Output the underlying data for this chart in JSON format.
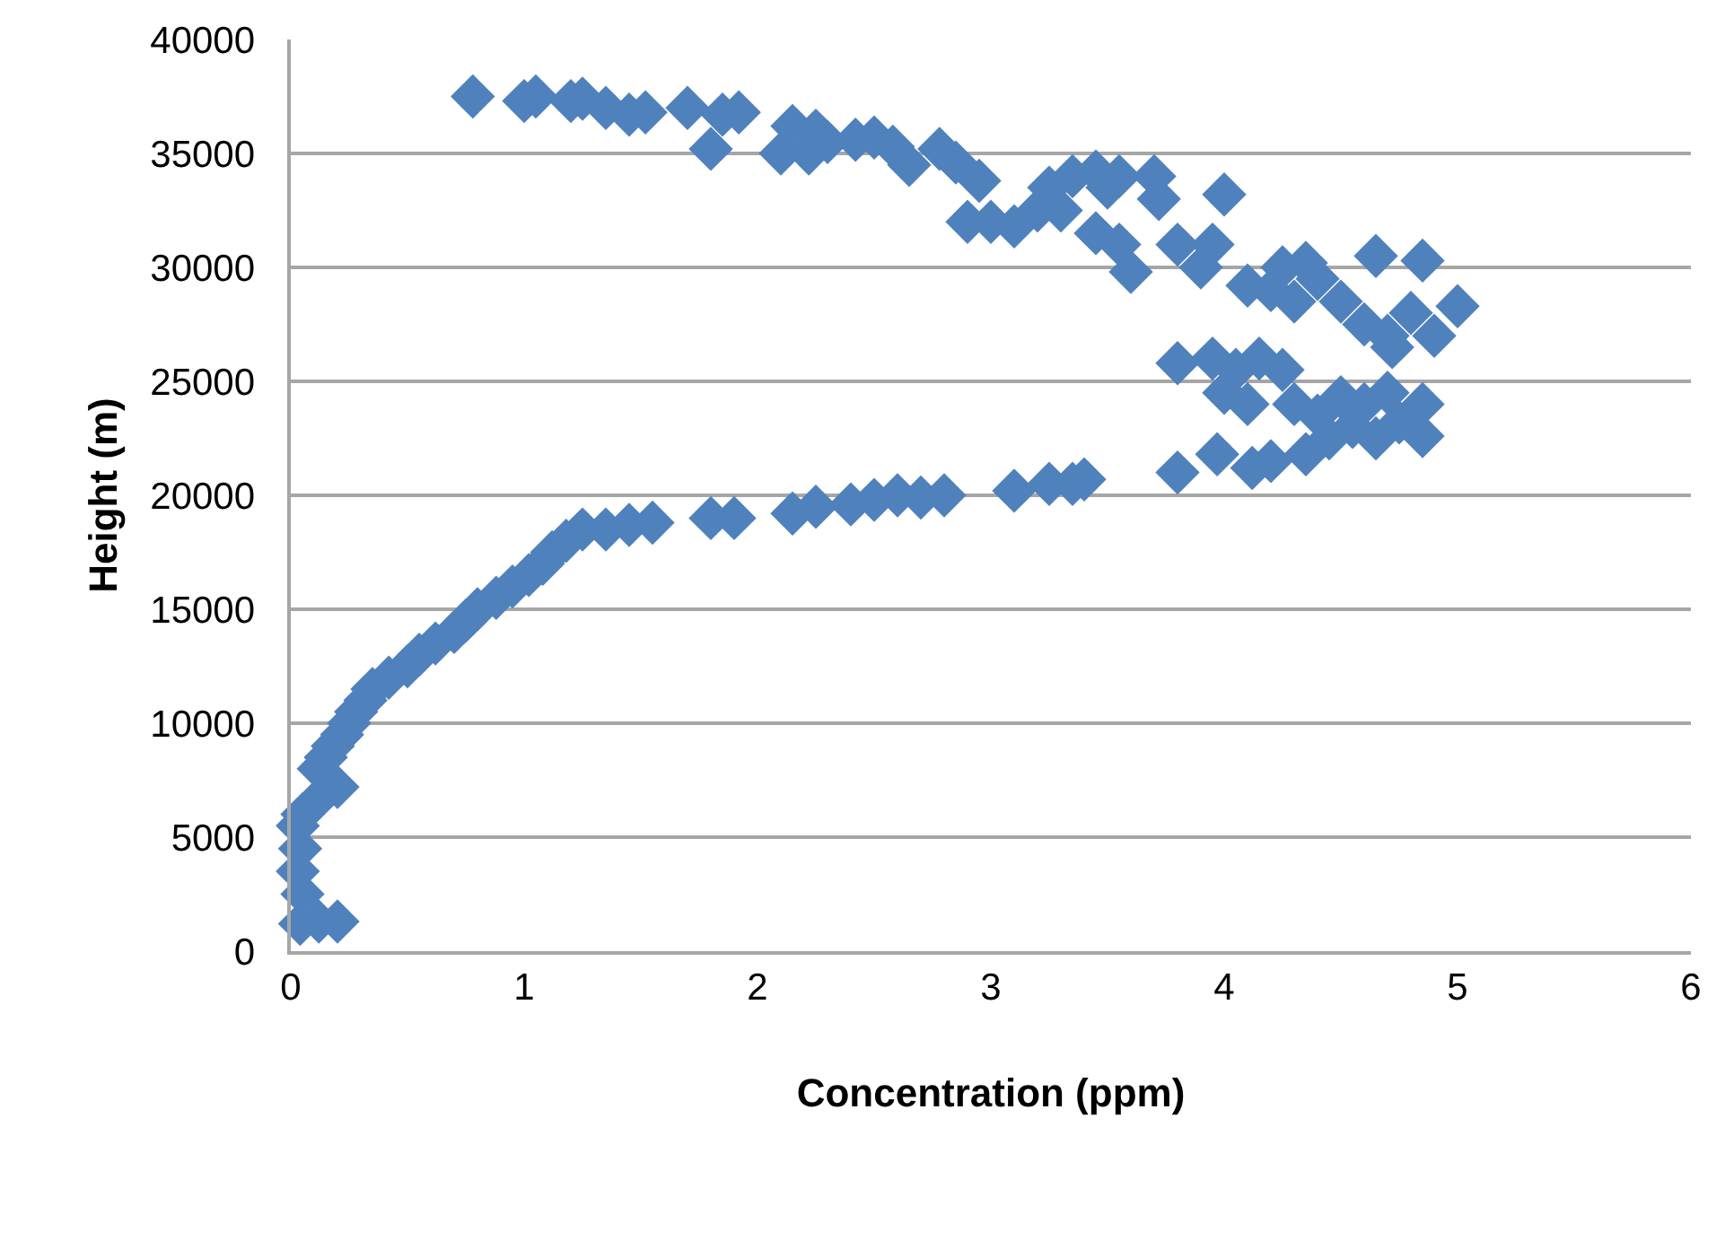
{
  "chart_data": {
    "type": "scatter",
    "xlabel": "Concentration (ppm)",
    "ylabel": "Height (m)",
    "xlim": [
      0,
      6
    ],
    "xticks": [
      0,
      1,
      2,
      3,
      4,
      5,
      6
    ],
    "ylim": [
      0,
      40000
    ],
    "yticks": [
      0,
      5000,
      10000,
      15000,
      20000,
      25000,
      30000,
      35000,
      40000
    ],
    "grid": "y",
    "marker": "diamond",
    "series": [
      {
        "color": "#4f81bd",
        "x": [
          0.04,
          0.12,
          0.2,
          0.05,
          0.03,
          0.04,
          0.03,
          0.05,
          0.1,
          0.2,
          0.12,
          0.15,
          0.18,
          0.22,
          0.25,
          0.28,
          0.32,
          0.35,
          0.42,
          0.5,
          0.55,
          0.62,
          0.7,
          0.75,
          0.8,
          0.88,
          0.95,
          1.02,
          1.08,
          1.12,
          1.18,
          1.25,
          1.35,
          1.45,
          1.55,
          1.8,
          1.9,
          2.15,
          2.25,
          2.4,
          2.5,
          2.6,
          2.7,
          2.8,
          3.1,
          3.25,
          3.35,
          3.4,
          3.8,
          3.97,
          4.12,
          4.2,
          4.35,
          4.45,
          4.65,
          4.85,
          3.8,
          3.95,
          4.05,
          4.15,
          4.25,
          4.0,
          4.1,
          4.3,
          4.4,
          4.5,
          4.6,
          4.7,
          4.85,
          4.55,
          4.75,
          0.78,
          1.0,
          1.05,
          1.2,
          1.25,
          1.35,
          1.45,
          1.52,
          1.7,
          1.85,
          1.8,
          1.92,
          2.1,
          2.15,
          2.22,
          2.25,
          2.3,
          2.42,
          2.5,
          2.58,
          2.65,
          2.78,
          2.85,
          2.95,
          2.9,
          3.0,
          3.1,
          3.2,
          3.25,
          3.35,
          3.3,
          3.45,
          3.5,
          3.55,
          3.45,
          3.55,
          3.7,
          3.72,
          3.6,
          3.8,
          3.9,
          4.0,
          3.95,
          4.1,
          4.2,
          4.25,
          4.35,
          4.4,
          4.3,
          4.5,
          4.65,
          4.6,
          4.7,
          4.8,
          4.85,
          4.9,
          5.0,
          4.72
        ],
        "values": [
          1200,
          1300,
          1300,
          2500,
          3500,
          4500,
          5500,
          6000,
          6500,
          7200,
          8000,
          8500,
          9000,
          9500,
          10000,
          10500,
          11000,
          11500,
          12000,
          12500,
          13000,
          13500,
          14000,
          14500,
          15000,
          15500,
          16000,
          16500,
          17000,
          17500,
          18000,
          18500,
          18500,
          18700,
          18800,
          19000,
          19000,
          19200,
          19500,
          19600,
          19800,
          20000,
          19900,
          20000,
          20200,
          20500,
          20500,
          20700,
          21000,
          21800,
          21200,
          21500,
          21800,
          22500,
          22500,
          22600,
          25800,
          26000,
          25500,
          26000,
          25500,
          24500,
          24000,
          24000,
          23500,
          24300,
          24000,
          24500,
          24000,
          23000,
          23200,
          37500,
          37300,
          37500,
          37300,
          37400,
          37000,
          36700,
          36800,
          37000,
          36700,
          35200,
          36800,
          35000,
          36200,
          35000,
          36000,
          35500,
          35600,
          35700,
          35300,
          34500,
          35200,
          34600,
          33800,
          32000,
          32000,
          31800,
          32500,
          33500,
          34000,
          32500,
          34200,
          33500,
          34000,
          31500,
          31000,
          34000,
          33000,
          29800,
          31000,
          30000,
          33200,
          31000,
          29200,
          29000,
          30000,
          30200,
          29500,
          28500,
          28500,
          30500,
          27500,
          27000,
          28000,
          30300,
          27000,
          28300,
          26500
        ]
      }
    ]
  }
}
